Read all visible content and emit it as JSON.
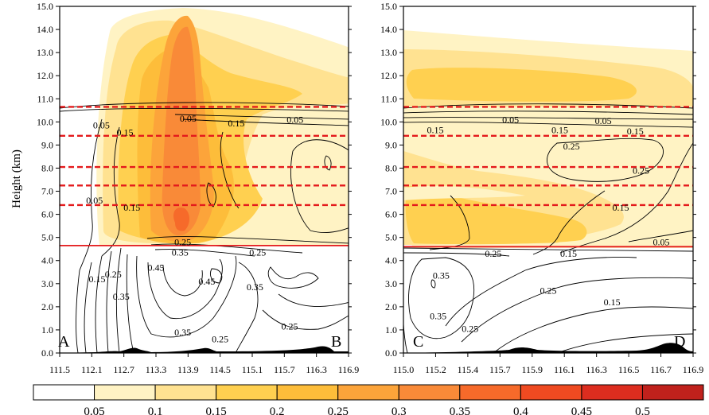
{
  "chart_data": [
    {
      "type": "filled-contour",
      "ylabel": "Height (km)",
      "ylim": [
        0,
        15
      ],
      "yticks": [
        "0.0",
        "1.0",
        "2.0",
        "3.0",
        "4.0",
        "5.0",
        "6.0",
        "7.0",
        "8.0",
        "9.0",
        "10.0",
        "11.0",
        "12.0",
        "13.0",
        "14.0",
        "15.0"
      ],
      "xticks": [
        "111.5",
        "112.1",
        "112.7",
        "113.3",
        "113.9",
        "114.5",
        "115.1",
        "115.7",
        "116.3",
        "116.9"
      ],
      "start_label": "A",
      "end_label": "B",
      "red_dashed_heights": [
        10.65,
        9.4,
        8.05,
        7.25,
        6.4
      ],
      "red_solid_height": 4.65,
      "contour_labels": [
        {
          "x": 112.28,
          "y": 9.85,
          "text": "0.05"
        },
        {
          "x": 112.72,
          "y": 9.55,
          "text": "0.15"
        },
        {
          "x": 113.9,
          "y": 10.15,
          "text": "0.05"
        },
        {
          "x": 114.8,
          "y": 9.95,
          "text": "0.15"
        },
        {
          "x": 115.9,
          "y": 10.1,
          "text": "0.05"
        },
        {
          "x": 112.15,
          "y": 6.6,
          "text": "0.05"
        },
        {
          "x": 112.85,
          "y": 6.3,
          "text": "0.15"
        },
        {
          "x": 113.8,
          "y": 4.8,
          "text": "0.25"
        },
        {
          "x": 113.75,
          "y": 4.35,
          "text": "0.35"
        },
        {
          "x": 115.2,
          "y": 4.35,
          "text": "0.25"
        },
        {
          "x": 112.2,
          "y": 3.2,
          "text": "0.15"
        },
        {
          "x": 112.5,
          "y": 3.4,
          "text": "0.25"
        },
        {
          "x": 112.65,
          "y": 2.45,
          "text": "0.35"
        },
        {
          "x": 113.3,
          "y": 3.7,
          "text": "0.45"
        },
        {
          "x": 114.25,
          "y": 3.1,
          "text": "0.45"
        },
        {
          "x": 115.15,
          "y": 2.85,
          "text": "0.35"
        },
        {
          "x": 113.8,
          "y": 0.9,
          "text": "0.35"
        },
        {
          "x": 114.5,
          "y": 0.6,
          "text": "0.25"
        },
        {
          "x": 115.8,
          "y": 1.15,
          "text": "0.25"
        }
      ]
    },
    {
      "type": "filled-contour",
      "ylim": [
        0,
        15
      ],
      "yticks": [
        "0.0",
        "1.0",
        "2.0",
        "3.0",
        "4.0",
        "5.0",
        "6.0",
        "7.0",
        "8.0",
        "9.0",
        "10.0",
        "11.0",
        "12.0",
        "13.0",
        "14.0",
        "15.0"
      ],
      "xticks": [
        "115.0",
        "115.2",
        "115.4",
        "115.7",
        "115.9",
        "116.1",
        "116.3",
        "116.5",
        "116.7",
        "116.9"
      ],
      "start_label": "C",
      "end_label": "D",
      "red_dashed_heights": [
        10.65,
        9.4,
        8.05,
        7.25,
        6.4
      ],
      "red_solid_height": 4.6,
      "contour_labels": [
        {
          "x": 0.11,
          "y": 9.65,
          "text": "0.15"
        },
        {
          "x": 0.37,
          "y": 10.1,
          "text": "0.05"
        },
        {
          "x": 0.54,
          "y": 9.65,
          "text": "0.15"
        },
        {
          "x": 0.69,
          "y": 10.05,
          "text": "0.05"
        },
        {
          "x": 0.8,
          "y": 9.6,
          "text": "0.15"
        },
        {
          "x": 0.58,
          "y": 8.95,
          "text": "0.25"
        },
        {
          "x": 0.82,
          "y": 7.9,
          "text": "0.25"
        },
        {
          "x": 0.75,
          "y": 6.3,
          "text": "0.15"
        },
        {
          "x": 0.89,
          "y": 4.8,
          "text": "0.05"
        },
        {
          "x": 0.31,
          "y": 4.3,
          "text": "0.25"
        },
        {
          "x": 0.57,
          "y": 4.3,
          "text": "0.15"
        },
        {
          "x": 0.13,
          "y": 3.35,
          "text": "0.35"
        },
        {
          "x": 0.12,
          "y": 1.6,
          "text": "0.35"
        },
        {
          "x": 0.23,
          "y": 1.05,
          "text": "0.25"
        },
        {
          "x": 0.5,
          "y": 2.7,
          "text": "0.25"
        },
        {
          "x": 0.72,
          "y": 2.2,
          "text": "0.15"
        }
      ]
    }
  ],
  "colorbar": {
    "labels": [
      "0.05",
      "0.1",
      "0.15",
      "0.2",
      "0.25",
      "0.3",
      "0.35",
      "0.4",
      "0.45",
      "0.5"
    ],
    "colors": [
      "#ffffff",
      "#fff3c4",
      "#ffe291",
      "#ffd050",
      "#fdbd3a",
      "#fca43a",
      "#f98a38",
      "#f66a2a",
      "#ef4a21",
      "#dd2d1f",
      "#c0211c"
    ]
  }
}
